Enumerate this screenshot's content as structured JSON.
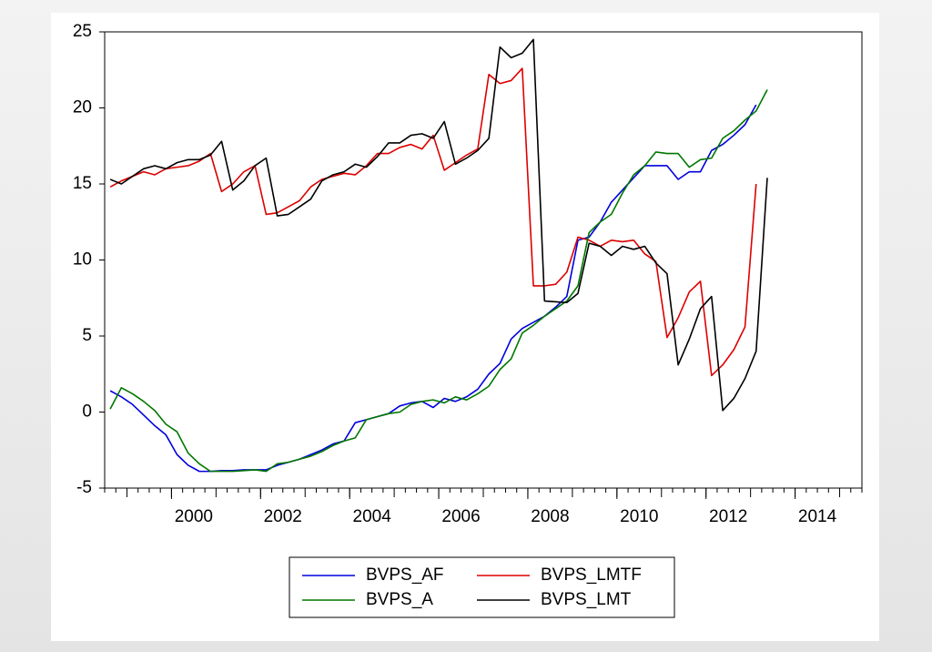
{
  "chart_data": {
    "type": "line",
    "x": [
      1998.625,
      1998.875,
      1999.125,
      1999.375,
      1999.625,
      1999.875,
      2000.125,
      2000.375,
      2000.625,
      2000.875,
      2001.125,
      2001.375,
      2001.625,
      2001.875,
      2002.125,
      2002.375,
      2002.625,
      2002.875,
      2003.125,
      2003.375,
      2003.625,
      2003.875,
      2004.125,
      2004.375,
      2004.625,
      2004.875,
      2005.125,
      2005.375,
      2005.625,
      2005.875,
      2006.125,
      2006.375,
      2006.625,
      2006.875,
      2007.125,
      2007.375,
      2007.625,
      2007.875,
      2008.125,
      2008.375,
      2008.625,
      2008.875,
      2009.125,
      2009.375,
      2009.625,
      2009.875,
      2010.125,
      2010.375,
      2010.625,
      2010.875,
      2011.125,
      2011.375,
      2011.625,
      2011.875,
      2012.125,
      2012.375,
      2012.625,
      2012.875,
      2013.125,
      2013.375
    ],
    "series": [
      {
        "name": "BVPS_AF",
        "color": "#0000dd",
        "values": [
          1.4,
          1.0,
          0.5,
          -0.2,
          -0.9,
          -1.5,
          -2.8,
          -3.5,
          -3.9,
          -3.9,
          -3.85,
          -3.85,
          -3.8,
          -3.8,
          -3.8,
          -3.5,
          -3.3,
          -3.1,
          -2.8,
          -2.5,
          -2.1,
          -1.9,
          -0.7,
          -0.5,
          -0.3,
          -0.1,
          0.4,
          0.6,
          0.7,
          0.3,
          0.9,
          0.7,
          1.0,
          1.5,
          2.5,
          3.2,
          4.8,
          5.5,
          5.9,
          6.3,
          6.9,
          7.6,
          11.3,
          11.5,
          12.5,
          13.8,
          14.6,
          15.4,
          16.2,
          16.2,
          16.2,
          15.3,
          15.8,
          15.8,
          17.2,
          17.6,
          18.2,
          18.9,
          20.2,
          null
        ]
      },
      {
        "name": "BVPS_LMTF",
        "color": "#dd0000",
        "values": [
          14.8,
          15.2,
          15.5,
          15.8,
          15.6,
          16.0,
          16.1,
          16.2,
          16.5,
          17.0,
          14.5,
          15.0,
          15.8,
          16.2,
          13.0,
          13.1,
          13.5,
          13.9,
          14.8,
          15.3,
          15.5,
          15.7,
          15.6,
          16.2,
          17.0,
          17.0,
          17.4,
          17.6,
          17.3,
          18.2,
          15.9,
          16.4,
          16.9,
          17.3,
          22.2,
          21.6,
          21.8,
          22.6,
          8.3,
          8.3,
          8.4,
          9.2,
          11.5,
          11.3,
          10.9,
          11.3,
          11.2,
          11.3,
          10.4,
          9.9,
          4.9,
          6.2,
          7.9,
          8.6,
          2.4,
          3.1,
          4.1,
          5.6,
          15.0,
          null
        ]
      },
      {
        "name": "BVPS_A",
        "color": "#007700",
        "values": [
          0.2,
          1.6,
          1.2,
          0.7,
          0.1,
          -0.8,
          -1.3,
          -2.7,
          -3.4,
          -3.9,
          -3.9,
          -3.9,
          -3.85,
          -3.8,
          -3.9,
          -3.4,
          -3.3,
          -3.1,
          -2.9,
          -2.6,
          -2.2,
          -1.9,
          -1.7,
          -0.5,
          -0.3,
          -0.1,
          0.0,
          0.5,
          0.7,
          0.8,
          0.6,
          1.0,
          0.8,
          1.2,
          1.7,
          2.8,
          3.5,
          5.2,
          5.7,
          6.3,
          6.8,
          7.3,
          8.3,
          11.8,
          12.5,
          13.0,
          14.4,
          15.6,
          16.2,
          17.1,
          17.0,
          17.0,
          16.1,
          16.6,
          16.7,
          18.0,
          18.5,
          19.2,
          19.8,
          21.2
        ]
      },
      {
        "name": "BVPS_LMT",
        "color": "#000000",
        "values": [
          15.3,
          15.0,
          15.5,
          16.0,
          16.2,
          16.0,
          16.4,
          16.6,
          16.6,
          16.9,
          17.8,
          14.6,
          15.2,
          16.2,
          16.7,
          12.9,
          13.0,
          13.5,
          14.0,
          15.2,
          15.6,
          15.8,
          16.3,
          16.1,
          16.8,
          17.7,
          17.7,
          18.2,
          18.3,
          18.0,
          19.1,
          16.3,
          16.7,
          17.2,
          18.0,
          24.0,
          23.3,
          23.6,
          24.5,
          7.3,
          7.25,
          7.2,
          7.8,
          11.1,
          10.9,
          10.3,
          10.9,
          10.7,
          10.9,
          9.8,
          9.1,
          3.1,
          4.8,
          6.8,
          7.6,
          0.1,
          0.9,
          2.2,
          4.0,
          15.4
        ]
      }
    ],
    "xlim": [
      1998.5,
      2015.5
    ],
    "xticks": [
      2000,
      2002,
      2004,
      2006,
      2008,
      2010,
      2012,
      2014
    ],
    "ylim": [
      -5,
      25
    ],
    "yticks": [
      -5,
      0,
      5,
      10,
      15,
      20,
      25
    ],
    "grid": false
  }
}
